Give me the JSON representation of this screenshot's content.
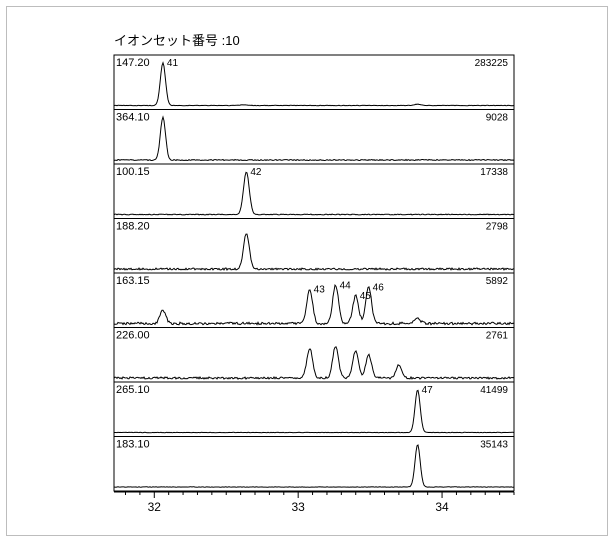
{
  "chart_data": {
    "type": "line",
    "title": "イオンセット番号 :10",
    "xlabel": "",
    "ylabel": "",
    "xlim": [
      31.72,
      34.5
    ],
    "x_ticks": [
      32,
      33,
      34
    ],
    "x_tick_labels": [
      "32",
      "33",
      "34"
    ],
    "grid": false,
    "legend": "none",
    "traces": [
      {
        "mass": "147.20",
        "intensity": "283225",
        "noise": 0.02,
        "peaks": [
          {
            "rt": 32.06,
            "height": 1.0,
            "width": 0.018,
            "label": "41"
          },
          {
            "rt": 32.62,
            "height": 0.015,
            "width": 0.03
          },
          {
            "rt": 33.83,
            "height": 0.03,
            "width": 0.02
          }
        ]
      },
      {
        "mass": "364.10",
        "intensity": "9028",
        "noise": 0.05,
        "peaks": [
          {
            "rt": 32.06,
            "height": 1.0,
            "width": 0.018
          }
        ]
      },
      {
        "mass": "100.15",
        "intensity": "17338",
        "noise": 0.04,
        "peaks": [
          {
            "rt": 32.64,
            "height": 1.0,
            "width": 0.02,
            "label": "42"
          }
        ]
      },
      {
        "mass": "188.20",
        "intensity": "2798",
        "noise": 0.09,
        "peaks": [
          {
            "rt": 32.64,
            "height": 0.85,
            "width": 0.02
          }
        ]
      },
      {
        "mass": "163.15",
        "intensity": "5892",
        "noise": 0.12,
        "peaks": [
          {
            "rt": 32.06,
            "height": 0.3,
            "width": 0.02
          },
          {
            "rt": 33.08,
            "height": 0.8,
            "width": 0.02,
            "label": "43"
          },
          {
            "rt": 33.26,
            "height": 0.9,
            "width": 0.02,
            "label": "44"
          },
          {
            "rt": 33.4,
            "height": 0.65,
            "width": 0.02,
            "label": "45"
          },
          {
            "rt": 33.49,
            "height": 0.85,
            "width": 0.02,
            "label": "46"
          },
          {
            "rt": 33.83,
            "height": 0.12,
            "width": 0.02
          }
        ]
      },
      {
        "mass": "226.00",
        "intensity": "2761",
        "noise": 0.1,
        "peaks": [
          {
            "rt": 33.08,
            "height": 0.7,
            "width": 0.02
          },
          {
            "rt": 33.26,
            "height": 0.75,
            "width": 0.02
          },
          {
            "rt": 33.4,
            "height": 0.65,
            "width": 0.02
          },
          {
            "rt": 33.49,
            "height": 0.55,
            "width": 0.02
          },
          {
            "rt": 33.7,
            "height": 0.3,
            "width": 0.02
          }
        ]
      },
      {
        "mass": "265.10",
        "intensity": "41499",
        "noise": 0.02,
        "peaks": [
          {
            "rt": 33.83,
            "height": 1.0,
            "width": 0.018,
            "label": "47"
          }
        ]
      },
      {
        "mass": "183.10",
        "intensity": "35143",
        "noise": 0.02,
        "peaks": [
          {
            "rt": 33.83,
            "height": 1.0,
            "width": 0.018
          }
        ]
      }
    ]
  },
  "colors": {
    "trace": "#000000",
    "panel_border": "#000000",
    "frame_border": "#bdbdbd"
  }
}
